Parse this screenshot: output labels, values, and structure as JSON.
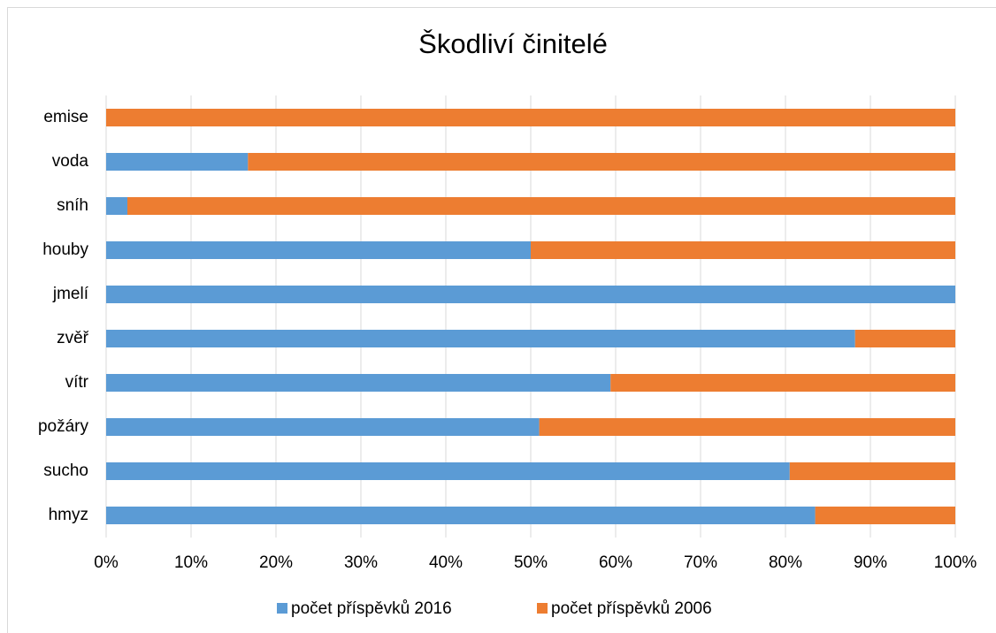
{
  "chart_data": {
    "type": "stacked_bar_horizontal",
    "title": "Škodliví činitelé",
    "categories": [
      "emise",
      "voda",
      "sníh",
      "houby",
      "jmelí",
      "zvěř",
      "vítr",
      "požáry",
      "sucho",
      "hmyz"
    ],
    "series": [
      {
        "name": "počet příspěvků 2016",
        "color": "#5b9bd5",
        "values": [
          0,
          16.7,
          2.5,
          50,
          100,
          88.2,
          59.4,
          51,
          80.5,
          83.5
        ]
      },
      {
        "name": "počet příspěvků 2006",
        "color": "#ed7d31",
        "values": [
          100,
          83.3,
          97.5,
          50,
          0,
          11.8,
          40.6,
          49,
          19.5,
          16.5
        ]
      }
    ],
    "xlim": [
      0,
      100
    ],
    "xticks": [
      {
        "value": 0,
        "label": "0%"
      },
      {
        "value": 10,
        "label": "10%"
      },
      {
        "value": 20,
        "label": "20%"
      },
      {
        "value": 30,
        "label": "30%"
      },
      {
        "value": 40,
        "label": "40%"
      },
      {
        "value": 50,
        "label": "50%"
      },
      {
        "value": 60,
        "label": "60%"
      },
      {
        "value": 70,
        "label": "70%"
      },
      {
        "value": 80,
        "label": "80%"
      },
      {
        "value": 90,
        "label": "90%"
      },
      {
        "value": 100,
        "label": "100%"
      }
    ],
    "grid": true,
    "legend": "bottom"
  }
}
